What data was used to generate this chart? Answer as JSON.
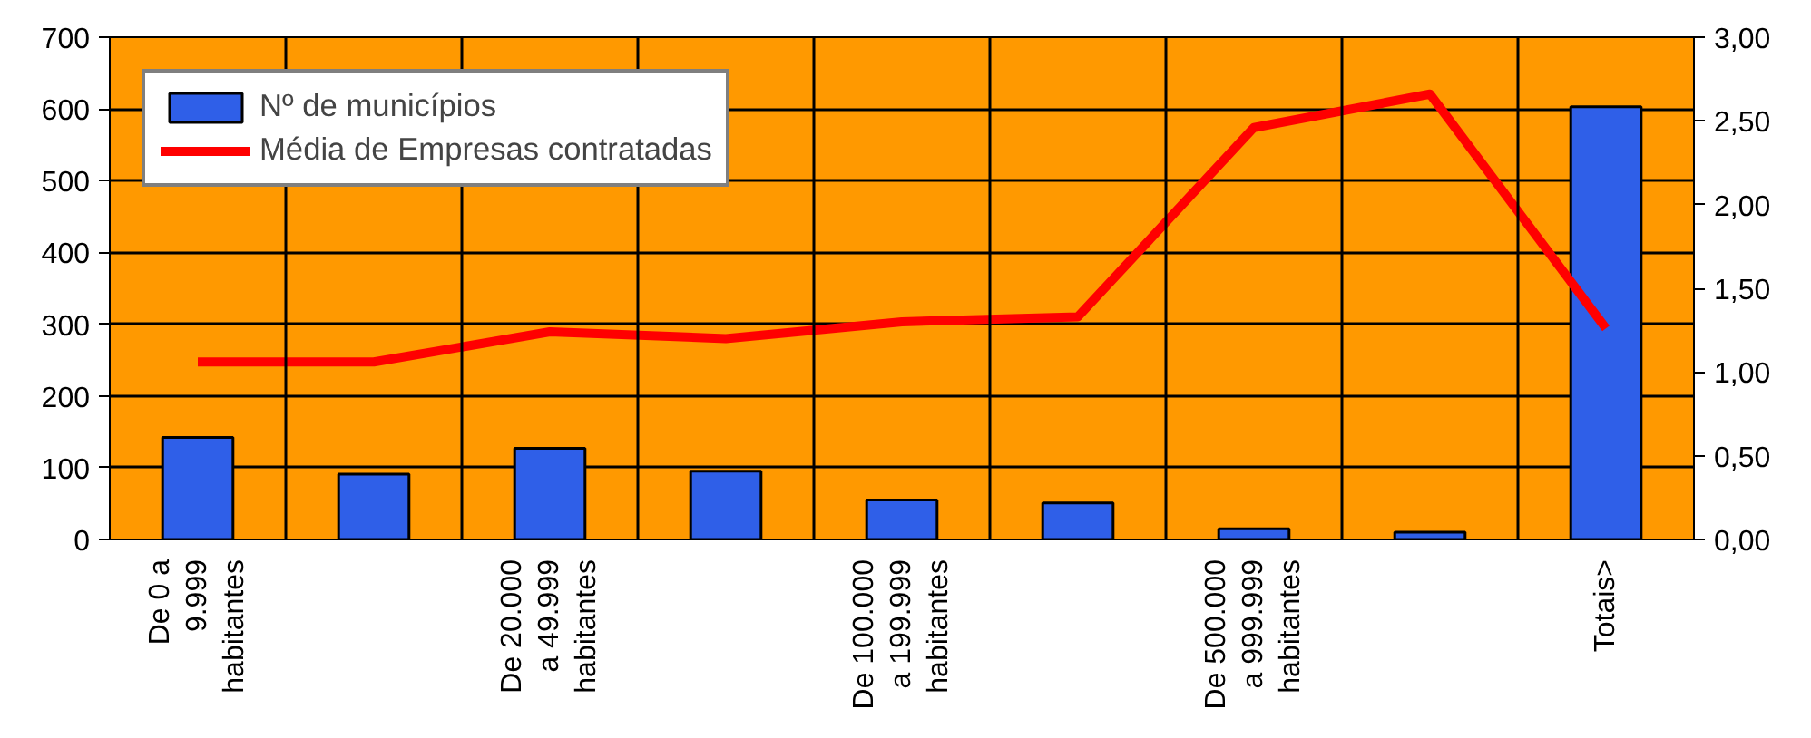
{
  "chart_data": {
    "type": "bar",
    "categories": [
      "De 0 a 9.999 habitantes",
      null,
      "De 20.000 a 49.999 habitantes",
      null,
      "De 100.000 a 199.999 habitantes",
      null,
      "De 500.000 a 999.999 habitantes",
      null,
      "Totais>"
    ],
    "series": [
      {
        "name": "Nº de municípios",
        "color": "#2f5fe8",
        "values": [
          142,
          91,
          127,
          95,
          55,
          51,
          15,
          10,
          603
        ]
      },
      {
        "name": "Média de Empresas contratadas",
        "type": "line",
        "axis": "y2",
        "color": "#ff0000",
        "values": [
          1.06,
          1.06,
          1.24,
          1.2,
          1.3,
          1.33,
          2.46,
          2.66,
          1.26
        ]
      }
    ],
    "ylim": [
      0,
      700
    ],
    "yticks": [
      0,
      100,
      200,
      300,
      400,
      500,
      600,
      700
    ],
    "y2lim": [
      0,
      3
    ],
    "y2ticks": [
      {
        "value": 0,
        "label": "0,00"
      },
      {
        "value": 0.5,
        "label": "0,50"
      },
      {
        "value": 1,
        "label": "1,00"
      },
      {
        "value": 1.5,
        "label": "1,50"
      },
      {
        "value": 2,
        "label": "2,00"
      },
      {
        "value": 2.5,
        "label": "2,50"
      },
      {
        "value": 3,
        "label": "3,00"
      }
    ],
    "grid": true,
    "legend": "top left"
  }
}
